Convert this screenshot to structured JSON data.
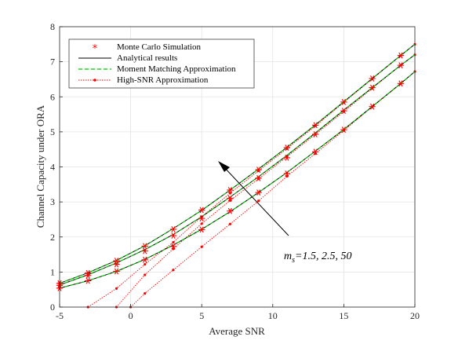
{
  "chart_data": {
    "type": "line",
    "xlabel": "Average SNR",
    "ylabel": "Channel Capacity under ORA",
    "xlim": [
      -5,
      20
    ],
    "ylim": [
      0,
      8
    ],
    "xticks": [
      -5,
      0,
      5,
      10,
      15,
      20
    ],
    "yticks": [
      0,
      1,
      2,
      3,
      4,
      5,
      6,
      7,
      8
    ],
    "grid": true,
    "legend_position": "top-left",
    "legend": [
      {
        "label": "Monte Carlo Simulation",
        "style": "red-asterisk"
      },
      {
        "label": "Analytical results",
        "style": "black-solid"
      },
      {
        "label": "Moment Matching Approximation",
        "style": "green-dashed"
      },
      {
        "label": "High-SNR Approximation",
        "style": "red-dotted-markers"
      }
    ],
    "annotation": {
      "m": "m",
      "sub": "s",
      "rest": "=1.5, 2.5, 50"
    },
    "colors": {
      "analytical": "#000000",
      "moment": "#00c800",
      "mc": "#ff0000",
      "highsnr": "#ff0000"
    },
    "series": [
      {
        "group": "upper",
        "analytical": {
          "x": [
            -5,
            -3,
            -1,
            1,
            3,
            5,
            7,
            9,
            11,
            13,
            15,
            17,
            19,
            20
          ],
          "y": [
            0.68,
            0.98,
            1.33,
            1.75,
            2.24,
            2.76,
            3.34,
            3.94,
            4.56,
            5.2,
            5.86,
            6.52,
            7.18,
            7.5
          ]
        },
        "mc": {
          "x": [
            -5,
            -3,
            -1,
            1,
            3,
            5,
            7,
            9,
            11,
            13,
            15,
            17,
            19
          ],
          "y": [
            0.68,
            0.97,
            1.32,
            1.74,
            2.22,
            2.77,
            3.34,
            3.92,
            4.55,
            5.19,
            5.85,
            6.52,
            7.18
          ]
        },
        "highsnr": {
          "x": [
            -3.0,
            -1,
            1,
            3,
            5,
            7,
            9,
            11,
            13,
            15,
            17,
            19,
            20
          ],
          "y": [
            0.0,
            0.53,
            1.22,
            1.85,
            2.58,
            3.25,
            3.89,
            4.52,
            5.17,
            5.84,
            6.51,
            7.17,
            7.5
          ]
        }
      },
      {
        "group": "middle",
        "analytical": {
          "x": [
            -5,
            -3,
            -1,
            1,
            3,
            5,
            7,
            9,
            11,
            13,
            15,
            17,
            19,
            20
          ],
          "y": [
            0.63,
            0.92,
            1.26,
            1.64,
            2.07,
            2.58,
            3.14,
            3.72,
            4.33,
            4.97,
            5.62,
            6.26,
            6.9,
            7.2
          ]
        },
        "mc": {
          "x": [
            -5,
            -3,
            -1,
            1,
            3,
            5,
            7,
            9,
            11,
            13,
            15,
            17,
            19
          ],
          "y": [
            0.62,
            0.9,
            1.22,
            1.6,
            2.04,
            2.53,
            3.1,
            3.68,
            4.26,
            4.93,
            5.6,
            6.26,
            6.9
          ]
        },
        "highsnr": {
          "x": [
            -1.0,
            1,
            3,
            5,
            7,
            9,
            11,
            13,
            15,
            17,
            19,
            20
          ],
          "y": [
            0.0,
            0.92,
            1.66,
            2.38,
            3.04,
            3.66,
            4.29,
            4.93,
            5.58,
            6.24,
            6.9,
            7.2
          ]
        }
      },
      {
        "group": "lower",
        "analytical": {
          "x": [
            -5,
            -3,
            -1,
            1,
            3,
            5,
            7,
            9,
            11,
            13,
            15,
            17,
            19,
            20
          ],
          "y": [
            0.54,
            0.75,
            1.02,
            1.36,
            1.77,
            2.22,
            2.72,
            3.27,
            3.84,
            4.45,
            5.07,
            5.72,
            6.38,
            6.72
          ]
        },
        "mc": {
          "x": [
            -5,
            -3,
            -1,
            1,
            3,
            5,
            7,
            9,
            11,
            13,
            15,
            17,
            19
          ],
          "y": [
            0.54,
            0.75,
            1.02,
            1.35,
            1.73,
            2.21,
            2.74,
            3.27,
            3.81,
            4.43,
            5.06,
            5.72,
            6.38
          ]
        },
        "highsnr": {
          "x": [
            0.0,
            1,
            3,
            5,
            7,
            9,
            11,
            13,
            15,
            17,
            19,
            20
          ],
          "y": [
            0.0,
            0.39,
            1.06,
            1.72,
            2.37,
            3.03,
            3.73,
            4.38,
            5.04,
            5.71,
            6.37,
            6.72
          ]
        }
      }
    ]
  }
}
